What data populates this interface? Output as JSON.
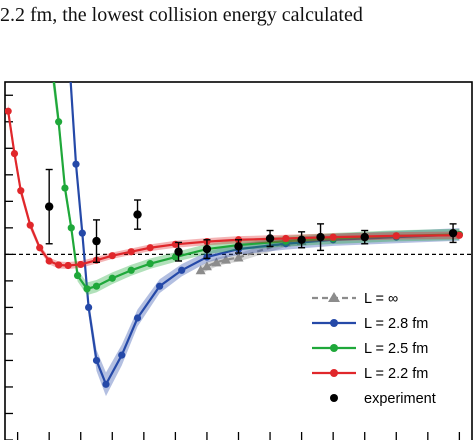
{
  "caption_fragment": "2.2 fm, the lowest collision energy calculated",
  "chart_data": {
    "type": "line",
    "title": "",
    "xlabel": "",
    "ylabel": "",
    "xlim": [
      0,
      15
    ],
    "ylim": [
      -7,
      6.5
    ],
    "reference_line": 0,
    "legend": {
      "position": "bottom-right"
    },
    "series": [
      {
        "name": "L = ∞",
        "color": "#8c8c8c",
        "style": "dashed",
        "marker": "triangle",
        "x": [
          6.8,
          7.0,
          7.3,
          7.6,
          8.0,
          9.5,
          10.0
        ],
        "y": [
          -0.6,
          -0.45,
          -0.3,
          -0.2,
          -0.12,
          0.45,
          0.5
        ],
        "band": 0.15
      },
      {
        "name": "L = 2.8 fm",
        "color": "#2549a8",
        "style": "solid",
        "marker": "circle",
        "x": [
          2.6,
          2.85,
          3.05,
          3.25,
          3.5,
          3.8,
          4.3,
          4.8,
          5.5,
          6.2,
          7.0,
          8.0,
          9.5,
          11,
          13,
          15
        ],
        "y": [
          8,
          3.4,
          0.8,
          -2.0,
          -4.0,
          -4.9,
          -3.8,
          -2.4,
          -1.2,
          -0.6,
          -0.1,
          0.2,
          0.4,
          0.55,
          0.65,
          0.75
        ],
        "band": 0.2
      },
      {
        "name": "L = 2.5 fm",
        "color": "#1fa83a",
        "style": "solid",
        "marker": "circle",
        "x": [
          2.0,
          2.3,
          2.5,
          2.7,
          2.9,
          3.2,
          3.5,
          4.0,
          4.6,
          5.2,
          6.0,
          7.0,
          8.0,
          9.5,
          11,
          13,
          15
        ],
        "y": [
          8,
          5.0,
          2.5,
          1.0,
          -0.8,
          -1.3,
          -1.2,
          -0.9,
          -0.6,
          -0.35,
          -0.1,
          0.2,
          0.35,
          0.5,
          0.6,
          0.7,
          0.75
        ],
        "band": 0.18
      },
      {
        "name": "L = 2.2 fm",
        "color": "#e0272b",
        "style": "solid",
        "marker": "circle",
        "x": [
          0.7,
          0.9,
          1.1,
          1.4,
          1.7,
          2.0,
          2.3,
          2.6,
          3.0,
          3.5,
          4.0,
          4.6,
          5.2,
          6.0,
          7.0,
          8.0,
          9.5,
          11,
          13,
          15
        ],
        "y": [
          5.4,
          3.8,
          2.4,
          1.1,
          0.25,
          -0.25,
          -0.4,
          -0.42,
          -0.38,
          -0.22,
          -0.05,
          0.1,
          0.25,
          0.38,
          0.48,
          0.55,
          0.6,
          0.65,
          0.7,
          0.72
        ],
        "band": 0.12
      },
      {
        "name": "experiment",
        "color": "#000000",
        "style": "none",
        "marker": "circle",
        "x": [
          2.0,
          3.5,
          4.8,
          6.1,
          7.0,
          8.0,
          9.0,
          10.0,
          10.6,
          12.0,
          14.8
        ],
        "y": [
          1.8,
          0.5,
          1.5,
          0.1,
          0.2,
          0.3,
          0.6,
          0.55,
          0.65,
          0.65,
          0.8
        ],
        "err": [
          1.4,
          0.8,
          0.55,
          0.35,
          0.35,
          0.25,
          0.3,
          0.3,
          0.5,
          0.25,
          0.35
        ]
      }
    ]
  }
}
